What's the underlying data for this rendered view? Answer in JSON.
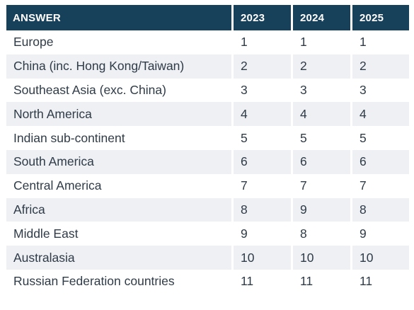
{
  "table": {
    "headers": [
      "ANSWER",
      "2023",
      "2024",
      "2025"
    ],
    "rows": [
      {
        "answer": "Europe",
        "y2023": "1",
        "y2024": "1",
        "y2025": "1"
      },
      {
        "answer": "China (inc. Hong Kong/Taiwan)",
        "y2023": "2",
        "y2024": "2",
        "y2025": "2"
      },
      {
        "answer": "Southeast Asia (exc. China)",
        "y2023": "3",
        "y2024": "3",
        "y2025": "3"
      },
      {
        "answer": "North America",
        "y2023": "4",
        "y2024": "4",
        "y2025": "4"
      },
      {
        "answer": "Indian sub-continent",
        "y2023": "5",
        "y2024": "5",
        "y2025": "5"
      },
      {
        "answer": "South America",
        "y2023": "6",
        "y2024": "6",
        "y2025": "6"
      },
      {
        "answer": "Central America",
        "y2023": "7",
        "y2024": "7",
        "y2025": "7"
      },
      {
        "answer": "Africa",
        "y2023": "8",
        "y2024": "9",
        "y2025": "8"
      },
      {
        "answer": "Middle East",
        "y2023": "9",
        "y2024": "8",
        "y2025": "9"
      },
      {
        "answer": "Australasia",
        "y2023": "10",
        "y2024": "10",
        "y2025": "10"
      },
      {
        "answer": "Russian Federation countries",
        "y2023": "11",
        "y2024": "11",
        "y2025": "11"
      }
    ]
  },
  "colors": {
    "header_bg": "#17405a",
    "header_text": "#ffffff",
    "stripe_bg": "#eef0f4",
    "body_text": "#2f3b47"
  }
}
